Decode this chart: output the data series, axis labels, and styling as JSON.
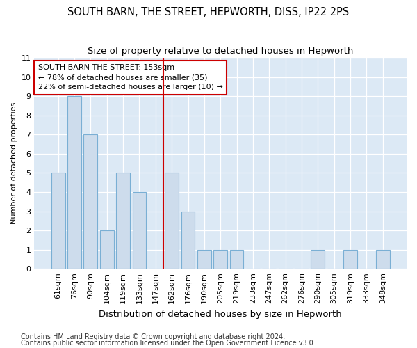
{
  "title": "SOUTH BARN, THE STREET, HEPWORTH, DISS, IP22 2PS",
  "subtitle": "Size of property relative to detached houses in Hepworth",
  "xlabel": "Distribution of detached houses by size in Hepworth",
  "ylabel": "Number of detached properties",
  "categories": [
    "61sqm",
    "76sqm",
    "90sqm",
    "104sqm",
    "119sqm",
    "133sqm",
    "147sqm",
    "162sqm",
    "176sqm",
    "190sqm",
    "205sqm",
    "219sqm",
    "233sqm",
    "247sqm",
    "262sqm",
    "276sqm",
    "290sqm",
    "305sqm",
    "319sqm",
    "333sqm",
    "348sqm"
  ],
  "values": [
    5,
    9,
    7,
    2,
    5,
    4,
    0,
    5,
    3,
    1,
    1,
    1,
    0,
    0,
    0,
    0,
    1,
    0,
    1,
    0,
    1
  ],
  "bar_color": "#cddcec",
  "bar_edge_color": "#7aafd4",
  "highlight_line_color": "#cc0000",
  "annotation_text": "SOUTH BARN THE STREET: 153sqm\n← 78% of detached houses are smaller (35)\n22% of semi-detached houses are larger (10) →",
  "annotation_box_color": "#cc0000",
  "ylim": [
    0,
    11
  ],
  "yticks": [
    0,
    1,
    2,
    3,
    4,
    5,
    6,
    7,
    8,
    9,
    10,
    11
  ],
  "fig_bg_color": "#ffffff",
  "plot_bg_color": "#dce9f5",
  "grid_color": "#ffffff",
  "title_fontsize": 10.5,
  "subtitle_fontsize": 9.5,
  "xlabel_fontsize": 9.5,
  "ylabel_fontsize": 8,
  "tick_fontsize": 8,
  "annotation_fontsize": 8,
  "footer_fontsize": 7,
  "footer_line1": "Contains HM Land Registry data © Crown copyright and database right 2024.",
  "footer_line2": "Contains public sector information licensed under the Open Government Licence v3.0."
}
